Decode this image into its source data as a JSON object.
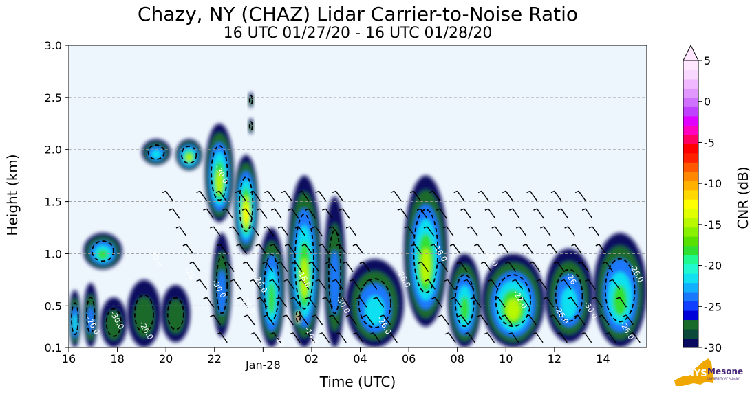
{
  "chart_data": {
    "type": "heatmap",
    "title": "Chazy, NY (CHAZ) Lidar Carrier-to-Noise Ratio",
    "subtitle": "16 UTC 01/27/20 - 16 UTC 01/28/20",
    "xlabel": "Time (UTC)",
    "ylabel": "Height (km)",
    "colorbar_label": "CNR (dB)",
    "x_range_hours_utc": [
      16,
      39.8
    ],
    "y_range_km": [
      0.1,
      3.0
    ],
    "x_ticks": [
      {
        "hour": 16,
        "label": "16"
      },
      {
        "hour": 18,
        "label": "18"
      },
      {
        "hour": 20,
        "label": "20"
      },
      {
        "hour": 22,
        "label": "22"
      },
      {
        "hour": 24,
        "label": "Jan-28"
      },
      {
        "hour": 26,
        "label": "02"
      },
      {
        "hour": 28,
        "label": "04"
      },
      {
        "hour": 30,
        "label": "06"
      },
      {
        "hour": 32,
        "label": "08"
      },
      {
        "hour": 34,
        "label": "10"
      },
      {
        "hour": 36,
        "label": "12"
      },
      {
        "hour": 38,
        "label": "14"
      }
    ],
    "y_ticks": [
      {
        "value": 0.1,
        "label": "0.1"
      },
      {
        "value": 0.5,
        "label": "0.5"
      },
      {
        "value": 1.0,
        "label": "1.0"
      },
      {
        "value": 1.5,
        "label": "1.5"
      },
      {
        "value": 2.0,
        "label": "2.0"
      },
      {
        "value": 2.5,
        "label": "2.5"
      },
      {
        "value": 3.0,
        "label": "3.0"
      }
    ],
    "grid": "horizontal dashed",
    "colorbar_range_db": [
      -30,
      5
    ],
    "colorbar_ticks": [
      {
        "value": 5,
        "label": "5"
      },
      {
        "value": 0,
        "label": "0"
      },
      {
        "value": -5,
        "label": "-5"
      },
      {
        "value": -10,
        "label": "-10"
      },
      {
        "value": -15,
        "label": "-15"
      },
      {
        "value": -20,
        "label": "-20"
      },
      {
        "value": -25,
        "label": "-25"
      },
      {
        "value": -30,
        "label": "-30"
      }
    ],
    "colorbar_colors": [
      "#0a0a5e",
      "#0b4a3a",
      "#1a6a2a",
      "#0000d8",
      "#1040ff",
      "#1a78ff",
      "#10b0ff",
      "#10e0f0",
      "#20f8d0",
      "#20f890",
      "#30e030",
      "#58e000",
      "#88f000",
      "#b8f800",
      "#e0ff00",
      "#ffff00",
      "#ffd800",
      "#ffb000",
      "#ff8800",
      "#ff5800",
      "#ff2000",
      "#ff0000",
      "#ff0060",
      "#ff00c0",
      "#e000ff",
      "#c040ff",
      "#d070ff",
      "#e098ff",
      "#f0b8ff",
      "#f8d8ff",
      "#ffe8ff"
    ],
    "plot_background": "#eef6fd",
    "echo_regions": [
      {
        "t0": 16.0,
        "t1": 16.5,
        "h0": 0.1,
        "h1": 0.65,
        "peak_db": -19
      },
      {
        "t0": 16.6,
        "t1": 18.2,
        "h0": 0.85,
        "h1": 1.2,
        "peak_db": -17
      },
      {
        "t0": 16.6,
        "t1": 17.2,
        "h0": 0.1,
        "h1": 0.72,
        "peak_db": -24
      },
      {
        "t0": 17.3,
        "t1": 18.4,
        "h0": 0.1,
        "h1": 0.58,
        "peak_db": -25
      },
      {
        "t0": 18.4,
        "t1": 19.8,
        "h0": 0.1,
        "h1": 0.75,
        "peak_db": -26
      },
      {
        "t0": 19.8,
        "t1": 21.0,
        "h0": 0.15,
        "h1": 0.7,
        "peak_db": -26
      },
      {
        "t0": 19.0,
        "t1": 20.2,
        "h0": 1.85,
        "h1": 2.1,
        "peak_db": -19
      },
      {
        "t0": 20.4,
        "t1": 21.5,
        "h0": 1.8,
        "h1": 2.1,
        "peak_db": -14
      },
      {
        "t0": 21.6,
        "t1": 22.8,
        "h0": 1.3,
        "h1": 2.25,
        "peak_db": -14
      },
      {
        "t0": 21.9,
        "t1": 22.7,
        "h0": 0.2,
        "h1": 1.2,
        "peak_db": -22
      },
      {
        "t0": 22.8,
        "t1": 23.8,
        "h0": 1.0,
        "h1": 1.95,
        "peak_db": -12
      },
      {
        "t0": 23.4,
        "t1": 23.6,
        "h0": 2.4,
        "h1": 2.55,
        "peak_db": -27
      },
      {
        "t0": 23.4,
        "t1": 23.6,
        "h0": 2.15,
        "h1": 2.3,
        "peak_db": -27
      },
      {
        "t0": 23.8,
        "t1": 24.9,
        "h0": 0.1,
        "h1": 1.25,
        "peak_db": -18
      },
      {
        "t0": 25.0,
        "t1": 26.4,
        "h0": 0.1,
        "h1": 1.75,
        "peak_db": -13
      },
      {
        "t0": 25.3,
        "t1": 25.6,
        "h0": 0.3,
        "h1": 0.5,
        "peak_db": -3
      },
      {
        "t0": 26.5,
        "t1": 27.4,
        "h0": 0.1,
        "h1": 1.55,
        "peak_db": -22
      },
      {
        "t0": 27.4,
        "t1": 29.8,
        "h0": 0.1,
        "h1": 0.95,
        "peak_db": -19
      },
      {
        "t0": 29.8,
        "t1": 31.6,
        "h0": 0.3,
        "h1": 1.75,
        "peak_db": -15
      },
      {
        "t0": 31.6,
        "t1": 33.0,
        "h0": 0.1,
        "h1": 1.0,
        "peak_db": -17
      },
      {
        "t0": 33.0,
        "t1": 35.6,
        "h0": 0.1,
        "h1": 1.0,
        "peak_db": -14
      },
      {
        "t0": 35.6,
        "t1": 37.6,
        "h0": 0.15,
        "h1": 1.05,
        "peak_db": -19
      },
      {
        "t0": 37.6,
        "t1": 39.8,
        "h0": 0.1,
        "h1": 1.2,
        "peak_db": -18
      }
    ],
    "contour_labels": [
      {
        "t": 16.9,
        "h": 0.3,
        "text": "-26.0"
      },
      {
        "t": 17.9,
        "h": 0.35,
        "text": "-30.0"
      },
      {
        "t": 19.1,
        "h": 0.25,
        "text": "-26.0"
      },
      {
        "t": 19.5,
        "h": 0.95,
        "text": "-30.0"
      },
      {
        "t": 20.9,
        "h": 0.8,
        "text": "-26"
      },
      {
        "t": 22.1,
        "h": 0.65,
        "text": "-30.0"
      },
      {
        "t": 22.2,
        "h": 1.75,
        "text": "-30.0"
      },
      {
        "t": 23.3,
        "h": 0.5,
        "text": "-26.0"
      },
      {
        "t": 23.8,
        "h": 0.7,
        "text": "-26.0"
      },
      {
        "t": 25.6,
        "h": 0.75,
        "text": "-18.0"
      },
      {
        "t": 25.9,
        "h": 0.2,
        "text": "-14.0"
      },
      {
        "t": 24.6,
        "h": 0.15,
        "text": "-22"
      },
      {
        "t": 27.2,
        "h": 0.5,
        "text": "-30.0"
      },
      {
        "t": 28.9,
        "h": 0.3,
        "text": "-26.0"
      },
      {
        "t": 29.7,
        "h": 0.75,
        "text": "-26.0"
      },
      {
        "t": 31.2,
        "h": 1.0,
        "text": "-18.0"
      },
      {
        "t": 33.3,
        "h": 0.95,
        "text": "-26.0"
      },
      {
        "t": 34.5,
        "h": 0.55,
        "text": "-22.0"
      },
      {
        "t": 36.2,
        "h": 0.4,
        "text": "-26.0"
      },
      {
        "t": 36.6,
        "h": 0.75,
        "text": "-26"
      },
      {
        "t": 37.4,
        "h": 0.45,
        "text": "-30.0"
      },
      {
        "t": 38.9,
        "h": 0.25,
        "text": "-26.0"
      },
      {
        "t": 39.3,
        "h": 0.8,
        "text": "-26.0"
      }
    ]
  },
  "logo": {
    "text": "NYS",
    "wordmark": "Mesonet",
    "tagline": "UNIVERSITY AT ALBANY"
  }
}
